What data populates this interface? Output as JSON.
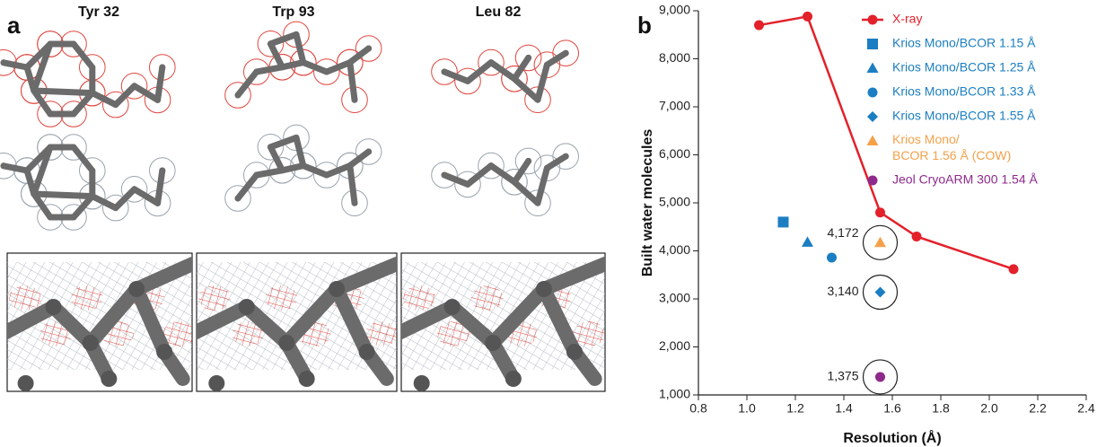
{
  "panel_a": {
    "label": "a",
    "columns": [
      "Tyr 32",
      "Trp 93",
      "Leu 82"
    ]
  },
  "chart_data": {
    "type": "scatter",
    "panel_label": "b",
    "x_label": "Resolution (Å)",
    "y_label": "Built water molecules",
    "xlim": [
      0.8,
      2.4
    ],
    "xticks": [
      0.8,
      {
        "value": 1,
        "label": "1.0"
      },
      1.2,
      1.4,
      1.6,
      1.8,
      {
        "value": 2,
        "label": "2.0"
      },
      2.2,
      2.4
    ],
    "ylim": [
      1000,
      9000
    ],
    "yticks": [
      {
        "value": 1000,
        "label": "1,000"
      },
      {
        "value": 2000,
        "label": "2,000"
      },
      {
        "value": 3000,
        "label": "3,000"
      },
      {
        "value": 4000,
        "label": "4,000"
      },
      {
        "value": 5000,
        "label": "5,000"
      },
      {
        "value": 6000,
        "label": "6,000"
      },
      {
        "value": 7000,
        "label": "7,000"
      },
      {
        "value": 8000,
        "label": "8,000"
      },
      {
        "value": 9000,
        "label": "9,000"
      }
    ],
    "series": [
      {
        "name": "X-ray",
        "color": "#e3212b",
        "marker": "circle",
        "line": true,
        "x": [
          1.05,
          1.25,
          1.55,
          1.7,
          2.1
        ],
        "values": [
          8700,
          8880,
          4800,
          4300,
          3620
        ]
      },
      {
        "name": "Krios Mono/BCOR 1.15 Å",
        "color": "#1b7ec2",
        "marker": "square",
        "x": [
          1.15
        ],
        "values": [
          4600
        ]
      },
      {
        "name": "Krios Mono/BCOR 1.25 Å",
        "color": "#1b7ec2",
        "marker": "triangle",
        "x": [
          1.25
        ],
        "values": [
          4180
        ]
      },
      {
        "name": "Krios Mono/BCOR 1.33 Å",
        "color": "#1b7ec2",
        "marker": "circle",
        "x": [
          1.35
        ],
        "values": [
          3860
        ]
      },
      {
        "name": "Krios Mono/BCOR 1.55 Å",
        "color": "#1b7ec2",
        "marker": "diamond",
        "x": [
          1.55
        ],
        "values": [
          3140
        ],
        "value_labels": [
          "3,140"
        ]
      },
      {
        "name": "Krios Mono/BCOR 1.56 Å (COW)",
        "color": "#f4a14a",
        "marker": "triangle",
        "x": [
          1.55
        ],
        "values": [
          4172
        ],
        "value_labels": [
          "4,172"
        ]
      },
      {
        "name": "Jeol CryoARM 300 1.54 Å",
        "color": "#8e2a8c",
        "marker": "circle",
        "x": [
          1.55
        ],
        "values": [
          1375
        ],
        "value_labels": [
          "1,375"
        ]
      }
    ]
  }
}
